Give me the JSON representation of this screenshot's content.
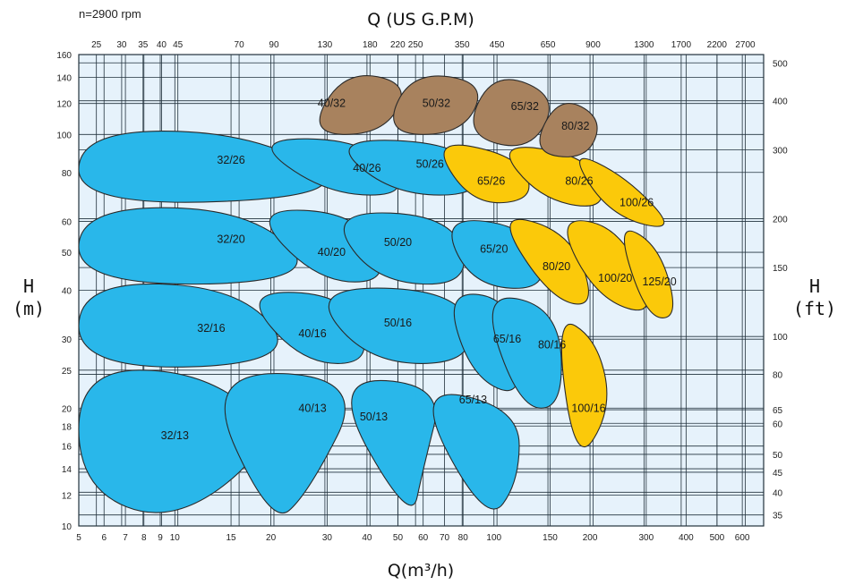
{
  "chart_data": {
    "type": "area",
    "title": "",
    "speed_note": "n=2900 rpm",
    "xlabel_bottom": "Q(m³/h)",
    "xlabel_top": "Q (US G.P.M)",
    "ylabel_left": "H",
    "ylabel_left_unit": "(m)",
    "ylabel_right": "H",
    "ylabel_right_unit": "(ft)",
    "x_scale": "log",
    "y_scale": "log",
    "xlim": [
      5,
      700
    ],
    "ylim": [
      10,
      160
    ],
    "grid": true,
    "x_ticks_bottom": [
      {
        "label": "5",
        "value": 5
      },
      {
        "label": "6",
        "value": 6
      },
      {
        "label": "7",
        "value": 7
      },
      {
        "label": "8",
        "value": 8
      },
      {
        "label": "9",
        "value": 9
      },
      {
        "label": "10",
        "value": 10
      },
      {
        "label": "15",
        "value": 15
      },
      {
        "label": "20",
        "value": 20
      },
      {
        "label": "30",
        "value": 30
      },
      {
        "label": "40",
        "value": 40
      },
      {
        "label": "50",
        "value": 50
      },
      {
        "label": "60",
        "value": 60
      },
      {
        "label": "70",
        "value": 70
      },
      {
        "label": "80",
        "value": 80
      },
      {
        "label": "100",
        "value": 100
      },
      {
        "label": "150",
        "value": 150
      },
      {
        "label": "200",
        "value": 200
      },
      {
        "label": "300",
        "value": 300
      },
      {
        "label": "400",
        "value": 400
      },
      {
        "label": "500",
        "value": 500
      },
      {
        "label": "600",
        "value": 600
      }
    ],
    "x_ticks_top": [
      {
        "label": "25",
        "value": 25
      },
      {
        "label": "30",
        "value": 30
      },
      {
        "label": "35",
        "value": 35
      },
      {
        "label": "40",
        "value": 40
      },
      {
        "label": "45",
        "value": 45
      },
      {
        "label": "70",
        "value": 70
      },
      {
        "label": "90",
        "value": 90
      },
      {
        "label": "130",
        "value": 130
      },
      {
        "label": "180",
        "value": 180
      },
      {
        "label": "220",
        "value": 220
      },
      {
        "label": "250",
        "value": 250
      },
      {
        "label": "350",
        "value": 350
      },
      {
        "label": "450",
        "value": 450
      },
      {
        "label": "650",
        "value": 650
      },
      {
        "label": "900",
        "value": 900
      },
      {
        "label": "1300",
        "value": 1300
      },
      {
        "label": "1700",
        "value": 1700
      },
      {
        "label": "2200",
        "value": 2200
      },
      {
        "label": "2700",
        "value": 2700
      }
    ],
    "y_ticks_left": [
      {
        "label": "10",
        "value": 10
      },
      {
        "label": "12",
        "value": 12
      },
      {
        "label": "14",
        "value": 14
      },
      {
        "label": "16",
        "value": 16
      },
      {
        "label": "18",
        "value": 18
      },
      {
        "label": "20",
        "value": 20
      },
      {
        "label": "25",
        "value": 25
      },
      {
        "label": "30",
        "value": 30
      },
      {
        "label": "40",
        "value": 40
      },
      {
        "label": "50",
        "value": 50
      },
      {
        "label": "60",
        "value": 60
      },
      {
        "label": "80",
        "value": 80
      },
      {
        "label": "100",
        "value": 100
      },
      {
        "label": "120",
        "value": 120
      },
      {
        "label": "140",
        "value": 140
      },
      {
        "label": "160",
        "value": 160
      }
    ],
    "y_ticks_right": [
      {
        "label": "35",
        "value": 35
      },
      {
        "label": "40",
        "value": 40
      },
      {
        "label": "45",
        "value": 45
      },
      {
        "label": "50",
        "value": 50
      },
      {
        "label": "60",
        "value": 60
      },
      {
        "label": "65",
        "value": 65
      },
      {
        "label": "80",
        "value": 80
      },
      {
        "label": "100",
        "value": 100
      },
      {
        "label": "150",
        "value": 150
      },
      {
        "label": "200",
        "value": 200
      },
      {
        "label": "300",
        "value": 300
      },
      {
        "label": "400",
        "value": 400
      },
      {
        "label": "500",
        "value": 500
      }
    ],
    "colors": {
      "background": "#e6f2fb",
      "blue": "#29b7ea",
      "yellow": "#fbc90a",
      "brown": "#a8825e",
      "outline": "#2a2a2a"
    },
    "regions": [
      {
        "label": "40/32",
        "color": "brown",
        "pts": [
          [
            26,
            100
          ],
          [
            34,
            146
          ],
          [
            55,
            135
          ],
          [
            45,
            100
          ]
        ],
        "label_at": [
          31,
          120
        ]
      },
      {
        "label": "50/32",
        "color": "brown",
        "pts": [
          [
            45,
            100
          ],
          [
            55,
            145
          ],
          [
            95,
            136
          ],
          [
            80,
            100
          ]
        ],
        "label_at": [
          66,
          120
        ]
      },
      {
        "label": "65/32",
        "color": "brown",
        "pts": [
          [
            80,
            100
          ],
          [
            100,
            146
          ],
          [
            160,
            125
          ],
          [
            130,
            90
          ]
        ],
        "label_at": [
          125,
          118
        ]
      },
      {
        "label": "80/32",
        "color": "brown",
        "pts": [
          [
            130,
            90
          ],
          [
            160,
            126
          ],
          [
            220,
            110
          ],
          [
            195,
            86
          ]
        ],
        "label_at": [
          180,
          105
        ]
      },
      {
        "label": "32/26",
        "color": "blue",
        "pts": [
          [
            5,
            102
          ],
          [
            17,
            102
          ],
          [
            40,
            70
          ],
          [
            5,
            65
          ]
        ],
        "label_at": [
          15,
          86
        ]
      },
      {
        "label": "40/26",
        "color": "blue",
        "pts": [
          [
            17,
            98
          ],
          [
            40,
            97
          ],
          [
            56,
            70
          ],
          [
            30,
            70
          ]
        ],
        "label_at": [
          40,
          82
        ]
      },
      {
        "label": "50/26",
        "color": "blue",
        "pts": [
          [
            30,
            98
          ],
          [
            80,
            95
          ],
          [
            95,
            70
          ],
          [
            48,
            70
          ]
        ],
        "label_at": [
          63,
          84
        ]
      },
      {
        "label": "65/26",
        "color": "yellow",
        "pts": [
          [
            63,
            98
          ],
          [
            120,
            88
          ],
          [
            135,
            68
          ],
          [
            85,
            66
          ]
        ],
        "label_at": [
          98,
          76
        ]
      },
      {
        "label": "80/26",
        "color": "yellow",
        "pts": [
          [
            100,
            96
          ],
          [
            200,
            88
          ],
          [
            230,
            64
          ],
          [
            140,
            68
          ]
        ],
        "label_at": [
          185,
          76
        ]
      },
      {
        "label": "100/26",
        "color": "yellow",
        "pts": [
          [
            170,
            92
          ],
          [
            260,
            78
          ],
          [
            380,
            56
          ],
          [
            230,
            62
          ]
        ],
        "label_at": [
          280,
          67
        ]
      },
      {
        "label": "32/20",
        "color": "blue",
        "pts": [
          [
            5,
            65
          ],
          [
            17,
            65
          ],
          [
            30,
            42
          ],
          [
            5,
            41
          ]
        ],
        "label_at": [
          15,
          54
        ]
      },
      {
        "label": "40/20",
        "color": "blue",
        "pts": [
          [
            17,
            65
          ],
          [
            38,
            63
          ],
          [
            48,
            42
          ],
          [
            28,
            42
          ]
        ],
        "label_at": [
          31,
          50
        ]
      },
      {
        "label": "50/20",
        "color": "blue",
        "pts": [
          [
            30,
            64
          ],
          [
            75,
            62
          ],
          [
            85,
            41
          ],
          [
            42,
            42
          ]
        ],
        "label_at": [
          50,
          53
        ]
      },
      {
        "label": "65/20",
        "color": "blue",
        "pts": [
          [
            68,
            62
          ],
          [
            130,
            58
          ],
          [
            150,
            40
          ],
          [
            85,
            41
          ]
        ],
        "label_at": [
          100,
          51
        ]
      },
      {
        "label": "80/20",
        "color": "yellow",
        "pts": [
          [
            100,
            64
          ],
          [
            175,
            56
          ],
          [
            210,
            36
          ],
          [
            150,
            38
          ]
        ],
        "label_at": [
          157,
          46
        ]
      },
      {
        "label": "100/20",
        "color": "yellow",
        "pts": [
          [
            155,
            62
          ],
          [
            250,
            58
          ],
          [
            330,
            34
          ],
          [
            210,
            38
          ]
        ],
        "label_at": [
          240,
          43
        ]
      },
      {
        "label": "125/20",
        "color": "yellow",
        "pts": [
          [
            240,
            60
          ],
          [
            330,
            52
          ],
          [
            380,
            34
          ],
          [
            300,
            34
          ]
        ],
        "label_at": [
          330,
          42
        ]
      },
      {
        "label": "32/16",
        "color": "blue",
        "pts": [
          [
            5,
            42
          ],
          [
            16,
            41
          ],
          [
            25,
            26
          ],
          [
            5,
            25
          ]
        ],
        "label_at": [
          13,
          32
        ]
      },
      {
        "label": "40/16",
        "color": "blue",
        "pts": [
          [
            16,
            40
          ],
          [
            35,
            39
          ],
          [
            42,
            26
          ],
          [
            25,
            26
          ]
        ],
        "label_at": [
          27,
          31
        ]
      },
      {
        "label": "50/16",
        "color": "blue",
        "pts": [
          [
            26,
            41
          ],
          [
            80,
            40
          ],
          [
            88,
            26
          ],
          [
            40,
            26
          ]
        ],
        "label_at": [
          50,
          33
        ]
      },
      {
        "label": "65/16",
        "color": "blue",
        "pts": [
          [
            70,
            40
          ],
          [
            115,
            38
          ],
          [
            125,
            21
          ],
          [
            85,
            24
          ]
        ],
        "label_at": [
          110,
          30
        ]
      },
      {
        "label": "80/16",
        "color": "blue",
        "pts": [
          [
            90,
            40
          ],
          [
            160,
            36
          ],
          [
            165,
            20
          ],
          [
            120,
            20
          ]
        ],
        "label_at": [
          152,
          29
        ]
      },
      {
        "label": "100/16",
        "color": "yellow",
        "pts": [
          [
            155,
            35
          ],
          [
            210,
            30
          ],
          [
            235,
            20
          ],
          [
            180,
            14
          ]
        ],
        "label_at": [
          198,
          20
        ]
      },
      {
        "label": "32/13",
        "color": "blue",
        "pts": [
          [
            5,
            25
          ],
          [
            12,
            25
          ],
          [
            22,
            17
          ],
          [
            10,
            10
          ],
          [
            5,
            12.5
          ]
        ],
        "label_at": [
          10,
          17
        ]
      },
      {
        "label": "40/13",
        "color": "blue",
        "pts": [
          [
            12,
            25
          ],
          [
            40,
            24
          ],
          [
            26,
            12
          ],
          [
            20,
            10
          ]
        ],
        "label_at": [
          27,
          20
        ]
      },
      {
        "label": "50/13",
        "color": "blue",
        "pts": [
          [
            30,
            24
          ],
          [
            70,
            23
          ],
          [
            60,
            14
          ],
          [
            55,
            10
          ]
        ],
        "label_at": [
          42,
          19
        ]
      },
      {
        "label": "65/13",
        "color": "blue",
        "pts": [
          [
            55,
            23
          ],
          [
            120,
            20
          ],
          [
            120,
            13
          ],
          [
            95,
            10
          ]
        ],
        "label_at": [
          86,
          21
        ]
      }
    ]
  }
}
